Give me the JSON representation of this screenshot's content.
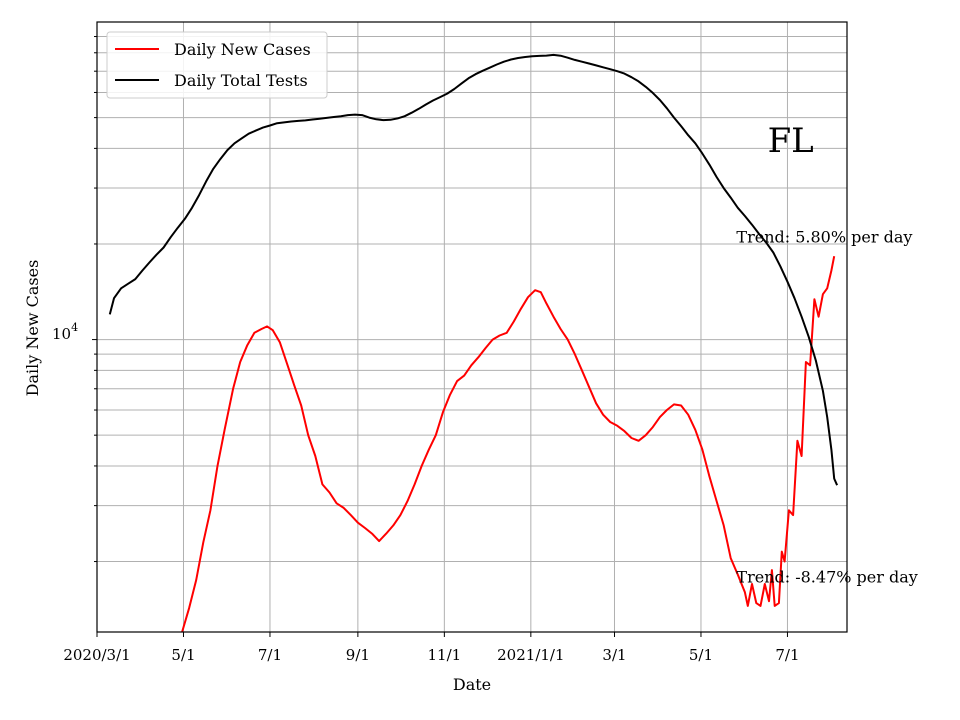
{
  "chart_data": {
    "type": "line",
    "title": "",
    "xlabel": "Date",
    "ylabel": "Daily New Cases",
    "y_scale": "log",
    "grid": "on",
    "legend_placement": "top-left",
    "xlim": [
      "2020-03-01",
      "2021-08-12"
    ],
    "ylim": [
      1200,
      100000
    ],
    "x_tick_labels": [
      "2020/3/1",
      "5/1",
      "7/1",
      "9/1",
      "11/1",
      "2021/1/1",
      "3/1",
      "5/1",
      "7/1"
    ],
    "x_tick_dates": [
      "2020-03-01",
      "2020-05-01",
      "2020-07-01",
      "2020-09-01",
      "2020-11-01",
      "2021-01-01",
      "2021-03-01",
      "2021-05-01",
      "2021-07-01"
    ],
    "y_tick_label": {
      "base": "10",
      "exponent": "4"
    },
    "y_tick_value": 10000,
    "series": [
      {
        "name": "Daily New Cases",
        "color": "#ff0000",
        "points": [
          [
            "2020-04-30",
            1200
          ],
          [
            "2020-05-05",
            1430
          ],
          [
            "2020-05-10",
            1750
          ],
          [
            "2020-05-15",
            2300
          ],
          [
            "2020-05-20",
            2900
          ],
          [
            "2020-05-25",
            4000
          ],
          [
            "2020-05-30",
            5200
          ],
          [
            "2020-06-05",
            7000
          ],
          [
            "2020-06-10",
            8500
          ],
          [
            "2020-06-15",
            9600
          ],
          [
            "2020-06-20",
            10500
          ],
          [
            "2020-06-25",
            10800
          ],
          [
            "2020-06-29",
            11000
          ],
          [
            "2020-07-03",
            10700
          ],
          [
            "2020-07-08",
            9800
          ],
          [
            "2020-07-13",
            8400
          ],
          [
            "2020-07-18",
            7200
          ],
          [
            "2020-07-23",
            6200
          ],
          [
            "2020-07-28",
            5000
          ],
          [
            "2020-08-02",
            4300
          ],
          [
            "2020-08-07",
            3500
          ],
          [
            "2020-08-12",
            3300
          ],
          [
            "2020-08-17",
            3050
          ],
          [
            "2020-08-22",
            2950
          ],
          [
            "2020-08-27",
            2800
          ],
          [
            "2020-09-01",
            2650
          ],
          [
            "2020-09-06",
            2550
          ],
          [
            "2020-09-11",
            2450
          ],
          [
            "2020-09-16",
            2320
          ],
          [
            "2020-09-21",
            2450
          ],
          [
            "2020-09-26",
            2600
          ],
          [
            "2020-10-01",
            2800
          ],
          [
            "2020-10-06",
            3100
          ],
          [
            "2020-10-11",
            3500
          ],
          [
            "2020-10-16",
            4000
          ],
          [
            "2020-10-21",
            4500
          ],
          [
            "2020-10-26",
            5000
          ],
          [
            "2020-10-31",
            5900
          ],
          [
            "2020-11-05",
            6700
          ],
          [
            "2020-11-10",
            7400
          ],
          [
            "2020-11-15",
            7700
          ],
          [
            "2020-11-20",
            8300
          ],
          [
            "2020-11-25",
            8800
          ],
          [
            "2020-11-30",
            9400
          ],
          [
            "2020-12-05",
            10000
          ],
          [
            "2020-12-10",
            10300
          ],
          [
            "2020-12-15",
            10500
          ],
          [
            "2020-12-20",
            11400
          ],
          [
            "2020-12-25",
            12500
          ],
          [
            "2020-12-30",
            13600
          ],
          [
            "2021-01-04",
            14300
          ],
          [
            "2021-01-08",
            14100
          ],
          [
            "2021-01-12",
            13000
          ],
          [
            "2021-01-17",
            11800
          ],
          [
            "2021-01-22",
            10800
          ],
          [
            "2021-01-27",
            10000
          ],
          [
            "2021-02-01",
            9000
          ],
          [
            "2021-02-06",
            8000
          ],
          [
            "2021-02-11",
            7100
          ],
          [
            "2021-02-16",
            6300
          ],
          [
            "2021-02-21",
            5800
          ],
          [
            "2021-02-26",
            5500
          ],
          [
            "2021-03-03",
            5350
          ],
          [
            "2021-03-08",
            5150
          ],
          [
            "2021-03-13",
            4900
          ],
          [
            "2021-03-18",
            4800
          ],
          [
            "2021-03-23",
            5000
          ],
          [
            "2021-03-28",
            5300
          ],
          [
            "2021-04-02",
            5700
          ],
          [
            "2021-04-07",
            6000
          ],
          [
            "2021-04-12",
            6250
          ],
          [
            "2021-04-17",
            6200
          ],
          [
            "2021-04-22",
            5800
          ],
          [
            "2021-04-27",
            5200
          ],
          [
            "2021-05-02",
            4500
          ],
          [
            "2021-05-07",
            3700
          ],
          [
            "2021-05-12",
            3100
          ],
          [
            "2021-05-17",
            2600
          ],
          [
            "2021-05-22",
            2050
          ],
          [
            "2021-05-27",
            1820
          ],
          [
            "2021-06-01",
            1600
          ],
          [
            "2021-06-03",
            1450
          ],
          [
            "2021-06-06",
            1700
          ],
          [
            "2021-06-09",
            1480
          ],
          [
            "2021-06-12",
            1450
          ],
          [
            "2021-06-15",
            1700
          ],
          [
            "2021-06-18",
            1500
          ],
          [
            "2021-06-20",
            1880
          ],
          [
            "2021-06-22",
            1450
          ],
          [
            "2021-06-25",
            1480
          ],
          [
            "2021-06-27",
            2150
          ],
          [
            "2021-06-29",
            2000
          ],
          [
            "2021-07-02",
            2900
          ],
          [
            "2021-07-05",
            2800
          ],
          [
            "2021-07-08",
            4800
          ],
          [
            "2021-07-11",
            4300
          ],
          [
            "2021-07-14",
            8500
          ],
          [
            "2021-07-17",
            8300
          ],
          [
            "2021-07-20",
            13400
          ],
          [
            "2021-07-23",
            11800
          ],
          [
            "2021-07-26",
            13900
          ],
          [
            "2021-07-29",
            14500
          ],
          [
            "2021-08-01",
            16500
          ],
          [
            "2021-08-03",
            18300
          ]
        ]
      },
      {
        "name": "Daily Total Tests",
        "color": "#000000",
        "points": [
          [
            "2020-03-10",
            12000
          ],
          [
            "2020-03-13",
            13500
          ],
          [
            "2020-03-18",
            14500
          ],
          [
            "2020-03-23",
            15000
          ],
          [
            "2020-03-28",
            15500
          ],
          [
            "2020-04-02",
            16500
          ],
          [
            "2020-04-07",
            17500
          ],
          [
            "2020-04-12",
            18500
          ],
          [
            "2020-04-17",
            19500
          ],
          [
            "2020-04-22",
            21000
          ],
          [
            "2020-04-27",
            22500
          ],
          [
            "2020-05-02",
            24000
          ],
          [
            "2020-05-07",
            26000
          ],
          [
            "2020-05-12",
            28500
          ],
          [
            "2020-05-17",
            31500
          ],
          [
            "2020-05-22",
            34500
          ],
          [
            "2020-05-27",
            37000
          ],
          [
            "2020-06-01",
            39500
          ],
          [
            "2020-06-06",
            41500
          ],
          [
            "2020-06-11",
            43000
          ],
          [
            "2020-06-16",
            44500
          ],
          [
            "2020-06-21",
            45500
          ],
          [
            "2020-06-26",
            46500
          ],
          [
            "2020-07-01",
            47200
          ],
          [
            "2020-07-06",
            48000
          ],
          [
            "2020-07-11",
            48300
          ],
          [
            "2020-07-16",
            48600
          ],
          [
            "2020-07-21",
            48800
          ],
          [
            "2020-07-26",
            49000
          ],
          [
            "2020-07-31",
            49300
          ],
          [
            "2020-08-05",
            49600
          ],
          [
            "2020-08-10",
            49900
          ],
          [
            "2020-08-15",
            50200
          ],
          [
            "2020-08-20",
            50500
          ],
          [
            "2020-08-25",
            50900
          ],
          [
            "2020-08-30",
            51100
          ],
          [
            "2020-09-04",
            50900
          ],
          [
            "2020-09-09",
            50000
          ],
          [
            "2020-09-14",
            49400
          ],
          [
            "2020-09-19",
            49100
          ],
          [
            "2020-09-24",
            49200
          ],
          [
            "2020-09-29",
            49700
          ],
          [
            "2020-10-04",
            50500
          ],
          [
            "2020-10-09",
            51800
          ],
          [
            "2020-10-14",
            53300
          ],
          [
            "2020-10-19",
            55000
          ],
          [
            "2020-10-24",
            56600
          ],
          [
            "2020-10-29",
            58000
          ],
          [
            "2020-11-03",
            59500
          ],
          [
            "2020-11-08",
            61500
          ],
          [
            "2020-11-13",
            64000
          ],
          [
            "2020-11-18",
            66500
          ],
          [
            "2020-11-23",
            68500
          ],
          [
            "2020-11-28",
            70200
          ],
          [
            "2020-12-03",
            71800
          ],
          [
            "2020-12-08",
            73500
          ],
          [
            "2020-12-13",
            75000
          ],
          [
            "2020-12-18",
            76200
          ],
          [
            "2020-12-23",
            77000
          ],
          [
            "2020-12-28",
            77600
          ],
          [
            "2021-01-02",
            78000
          ],
          [
            "2021-01-07",
            78200
          ],
          [
            "2021-01-12",
            78400
          ],
          [
            "2021-01-17",
            78800
          ],
          [
            "2021-01-22",
            78300
          ],
          [
            "2021-01-27",
            77200
          ],
          [
            "2021-02-01",
            76000
          ],
          [
            "2021-02-06",
            75000
          ],
          [
            "2021-02-11",
            74000
          ],
          [
            "2021-02-16",
            73000
          ],
          [
            "2021-02-21",
            72000
          ],
          [
            "2021-02-26",
            71000
          ],
          [
            "2021-03-03",
            70000
          ],
          [
            "2021-03-08",
            68800
          ],
          [
            "2021-03-13",
            67000
          ],
          [
            "2021-03-18",
            65000
          ],
          [
            "2021-03-23",
            62500
          ],
          [
            "2021-03-28",
            59800
          ],
          [
            "2021-04-02",
            56800
          ],
          [
            "2021-04-07",
            53500
          ],
          [
            "2021-04-12",
            50000
          ],
          [
            "2021-04-17",
            47000
          ],
          [
            "2021-04-22",
            44000
          ],
          [
            "2021-04-27",
            41500
          ],
          [
            "2021-05-02",
            38500
          ],
          [
            "2021-05-07",
            35500
          ],
          [
            "2021-05-12",
            32500
          ],
          [
            "2021-05-17",
            30000
          ],
          [
            "2021-05-22",
            28000
          ],
          [
            "2021-05-27",
            26000
          ],
          [
            "2021-06-01",
            24500
          ],
          [
            "2021-06-06",
            23000
          ],
          [
            "2021-06-11",
            21500
          ],
          [
            "2021-06-16",
            20200
          ],
          [
            "2021-06-21",
            18800
          ],
          [
            "2021-06-26",
            17000
          ],
          [
            "2021-07-01",
            15200
          ],
          [
            "2021-07-06",
            13500
          ],
          [
            "2021-07-11",
            11800
          ],
          [
            "2021-07-16",
            10200
          ],
          [
            "2021-07-21",
            8600
          ],
          [
            "2021-07-26",
            6900
          ],
          [
            "2021-07-29",
            5700
          ],
          [
            "2021-08-01",
            4500
          ],
          [
            "2021-08-03",
            3650
          ],
          [
            "2021-08-05",
            3480
          ]
        ]
      }
    ],
    "annotations": [
      {
        "text": "Trend: 5.80% per day",
        "date": "2021-05-26",
        "value": 20200
      },
      {
        "text": "Trend: -8.47% per day",
        "date": "2021-05-26",
        "value": 1720
      },
      {
        "text": "FL",
        "date": "2021-06-17",
        "value": 39000
      }
    ]
  }
}
